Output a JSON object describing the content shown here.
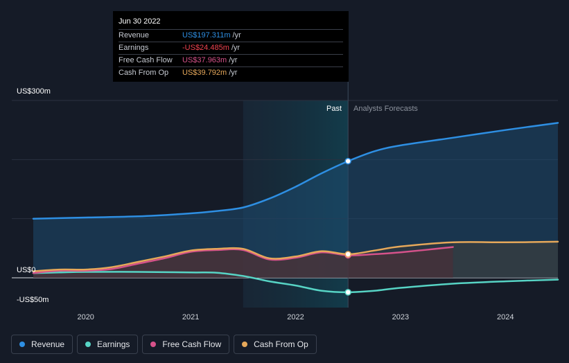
{
  "tooltip": {
    "date": "Jun 30 2022",
    "rows": [
      {
        "label": "Revenue",
        "value": "US$197.311m",
        "unit": "/yr",
        "color": "#2e8fe3"
      },
      {
        "label": "Earnings",
        "value": "-US$24.485m",
        "unit": "/yr",
        "color": "#f0434f"
      },
      {
        "label": "Free Cash Flow",
        "value": "US$37.963m",
        "unit": "/yr",
        "color": "#d6528a"
      },
      {
        "label": "Cash From Op",
        "value": "US$39.792m",
        "unit": "/yr",
        "color": "#e6a85a"
      }
    ]
  },
  "legend": [
    {
      "label": "Revenue",
      "color": "#2e8fe3"
    },
    {
      "label": "Earnings",
      "color": "#57d4c5"
    },
    {
      "label": "Free Cash Flow",
      "color": "#d6528a"
    },
    {
      "label": "Cash From Op",
      "color": "#e6a85a"
    }
  ],
  "chart_data": {
    "type": "line",
    "title": "",
    "xlabel": "",
    "ylabel": "",
    "ylim": [
      -50,
      300
    ],
    "xlim": [
      2019.45,
      2024.5
    ],
    "x_ticks": [
      2020,
      2021,
      2022,
      2023,
      2024
    ],
    "x_tick_labels": [
      "2020",
      "2021",
      "2022",
      "2023",
      "2024"
    ],
    "y_tick_labels": [
      {
        "value": 300,
        "label": "US$300m"
      },
      {
        "value": 0,
        "label": "US$0"
      },
      {
        "value": -50,
        "label": "-US$50m"
      }
    ],
    "gridlines_y": [
      300,
      200,
      100,
      0
    ],
    "past_region": [
      2021.5,
      2022.5
    ],
    "forecast_region": [
      2023.5,
      2024.5
    ],
    "past_label": "Past",
    "forecast_label": "Analysts Forecasts",
    "highlight_x": 2022.5,
    "series": [
      {
        "name": "Revenue",
        "color": "#2e8fe3",
        "fill": true,
        "points": [
          [
            2019.5,
            100
          ],
          [
            2020,
            102
          ],
          [
            2020.5,
            104
          ],
          [
            2021,
            109
          ],
          [
            2021.25,
            113
          ],
          [
            2021.5,
            119
          ],
          [
            2021.75,
            134
          ],
          [
            2022,
            154
          ],
          [
            2022.25,
            177
          ],
          [
            2022.5,
            197.3
          ],
          [
            2022.75,
            214
          ],
          [
            2023,
            224
          ],
          [
            2023.5,
            237
          ],
          [
            2024,
            250
          ],
          [
            2024.5,
            262
          ]
        ]
      },
      {
        "name": "Earnings",
        "color": "#57d4c5",
        "fill": false,
        "points": [
          [
            2019.5,
            8
          ],
          [
            2019.75,
            9
          ],
          [
            2020,
            10
          ],
          [
            2020.5,
            10
          ],
          [
            2021,
            9
          ],
          [
            2021.25,
            8.5
          ],
          [
            2021.5,
            3
          ],
          [
            2021.75,
            -6
          ],
          [
            2022,
            -13
          ],
          [
            2022.25,
            -22
          ],
          [
            2022.5,
            -24.5
          ],
          [
            2022.75,
            -22
          ],
          [
            2023,
            -17
          ],
          [
            2023.5,
            -10
          ],
          [
            2024,
            -6
          ],
          [
            2024.5,
            -3
          ]
        ]
      },
      {
        "name": "Free Cash Flow",
        "color": "#d6528a",
        "fill": true,
        "points": [
          [
            2019.5,
            8
          ],
          [
            2019.75,
            12
          ],
          [
            2020,
            12
          ],
          [
            2020.25,
            15
          ],
          [
            2020.5,
            24
          ],
          [
            2020.75,
            33
          ],
          [
            2021,
            44
          ],
          [
            2021.25,
            47
          ],
          [
            2021.5,
            47
          ],
          [
            2021.75,
            31
          ],
          [
            2022,
            34
          ],
          [
            2022.25,
            43
          ],
          [
            2022.5,
            38
          ],
          [
            2022.75,
            40
          ],
          [
            2023,
            43
          ],
          [
            2023.5,
            52
          ]
        ]
      },
      {
        "name": "Cash From Op",
        "color": "#e6a85a",
        "fill": true,
        "points": [
          [
            2019.5,
            11
          ],
          [
            2019.75,
            14
          ],
          [
            2020,
            14
          ],
          [
            2020.25,
            18
          ],
          [
            2020.5,
            27
          ],
          [
            2020.75,
            36
          ],
          [
            2021,
            46
          ],
          [
            2021.25,
            49
          ],
          [
            2021.5,
            49
          ],
          [
            2021.75,
            33
          ],
          [
            2022,
            36
          ],
          [
            2022.25,
            45
          ],
          [
            2022.5,
            39.8
          ],
          [
            2022.75,
            46
          ],
          [
            2023,
            53
          ],
          [
            2023.5,
            60
          ],
          [
            2024,
            60
          ],
          [
            2024.5,
            61
          ]
        ]
      }
    ]
  }
}
